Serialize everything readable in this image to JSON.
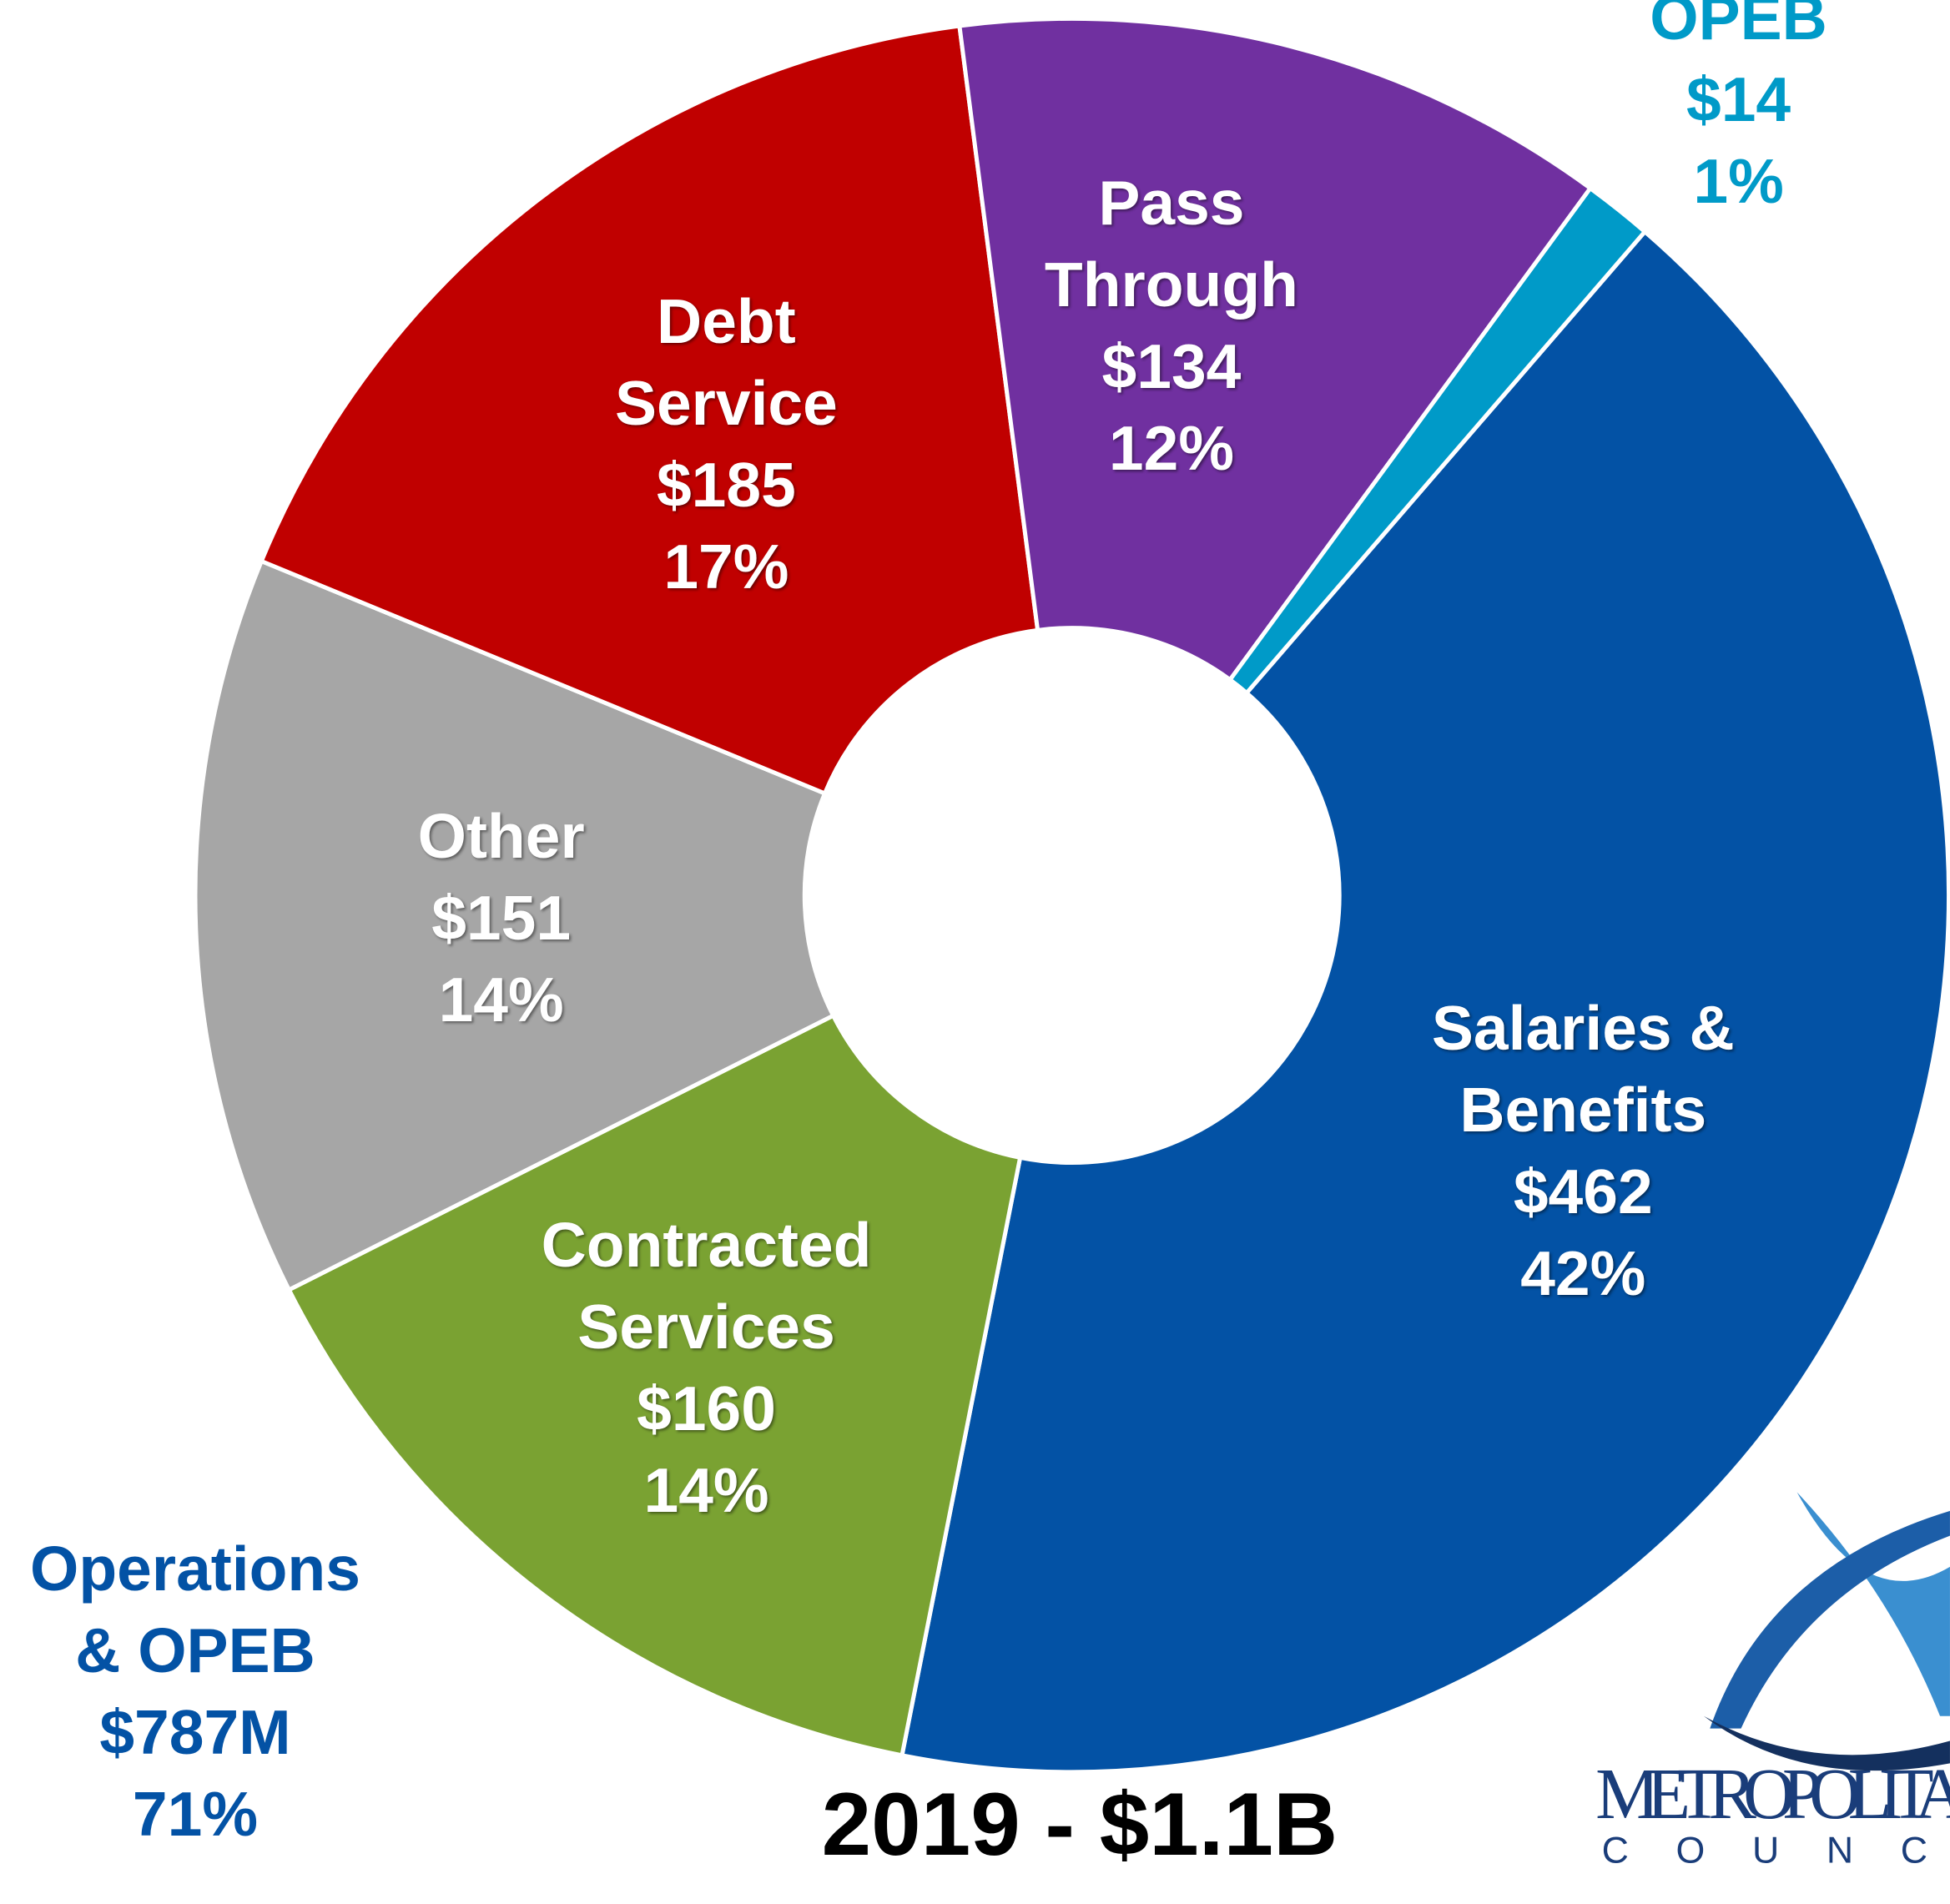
{
  "chart_data": {
    "type": "donut",
    "title": "2019 - $1.1B",
    "categories": [
      "Salaries & Benefits",
      "Contracted Services",
      "Other",
      "Debt Service",
      "Pass Through",
      "OPEB"
    ],
    "values": [
      462,
      160,
      151,
      185,
      134,
      14
    ],
    "value_labels": [
      "$462",
      "$160",
      "$151",
      "$185",
      "$134",
      "$14"
    ],
    "percent_labels": [
      "42%",
      "14%",
      "14%",
      "17%",
      "12%",
      "1%"
    ],
    "colors": [
      "#0352a5",
      "#7aa232",
      "#a6a6a6",
      "#c00000",
      "#7030a0",
      "#009ac8"
    ],
    "annotation": {
      "lines": [
        "Operations & OPEB",
        "$787M",
        "71%"
      ]
    },
    "logo": {
      "name": "METROPOLITAN",
      "sub": "COUNCIL"
    }
  }
}
